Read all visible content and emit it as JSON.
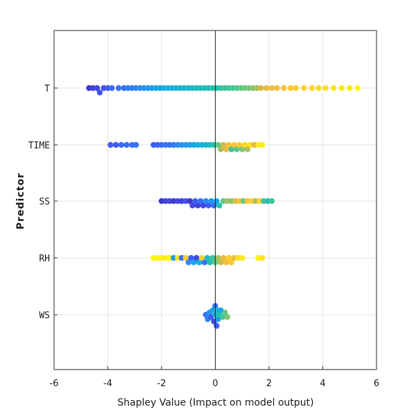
{
  "chart_data": {
    "type": "scatter",
    "subtype": "shap-swarm",
    "title": "",
    "xlabel": "Shapley Value (Impact on model output)",
    "ylabel": "Predictor",
    "xlim": [
      -6,
      6
    ],
    "xticks": [
      -6,
      -4,
      -2,
      0,
      2,
      4,
      6
    ],
    "grid": true,
    "colormap": [
      "#3e26a8",
      "#4352f4",
      "#2d88f3",
      "#13aee4",
      "#23c1ad",
      "#6cca7e",
      "#d2ba49",
      "#fec338",
      "#f9f90e"
    ],
    "predictors": [
      {
        "name": "T",
        "points": [
          {
            "x": -4.7,
            "c": 0.05
          },
          {
            "x": -4.55,
            "c": 0.08
          },
          {
            "x": -4.4,
            "c": 0.1
          },
          {
            "x": -4.3,
            "c": 0.12
          },
          {
            "x": -4.15,
            "c": 0.12
          },
          {
            "x": -4.0,
            "c": 0.15
          },
          {
            "x": -3.85,
            "c": 0.18
          },
          {
            "x": -3.6,
            "c": 0.2
          },
          {
            "x": -3.4,
            "c": 0.2
          },
          {
            "x": -3.25,
            "c": 0.22
          },
          {
            "x": -3.1,
            "c": 0.22
          },
          {
            "x": -2.95,
            "c": 0.25
          },
          {
            "x": -2.8,
            "c": 0.25
          },
          {
            "x": -2.65,
            "c": 0.3
          },
          {
            "x": -2.5,
            "c": 0.3
          },
          {
            "x": -2.35,
            "c": 0.32
          },
          {
            "x": -2.2,
            "c": 0.35
          },
          {
            "x": -2.05,
            "c": 0.35
          },
          {
            "x": -1.9,
            "c": 0.38
          },
          {
            "x": -1.75,
            "c": 0.38
          },
          {
            "x": -1.6,
            "c": 0.4
          },
          {
            "x": -1.45,
            "c": 0.4
          },
          {
            "x": -1.3,
            "c": 0.42
          },
          {
            "x": -1.15,
            "c": 0.42
          },
          {
            "x": -1.0,
            "c": 0.44
          },
          {
            "x": -0.85,
            "c": 0.44
          },
          {
            "x": -0.7,
            "c": 0.46
          },
          {
            "x": -0.55,
            "c": 0.46
          },
          {
            "x": -0.4,
            "c": 0.48
          },
          {
            "x": -0.25,
            "c": 0.48
          },
          {
            "x": -0.1,
            "c": 0.5
          },
          {
            "x": 0.05,
            "c": 0.5
          },
          {
            "x": 0.2,
            "c": 0.52
          },
          {
            "x": 0.35,
            "c": 0.54
          },
          {
            "x": 0.5,
            "c": 0.55
          },
          {
            "x": 0.65,
            "c": 0.56
          },
          {
            "x": 0.8,
            "c": 0.58
          },
          {
            "x": 0.95,
            "c": 0.6
          },
          {
            "x": 1.1,
            "c": 0.62
          },
          {
            "x": 1.25,
            "c": 0.64
          },
          {
            "x": 1.4,
            "c": 0.66
          },
          {
            "x": 1.55,
            "c": 0.7
          },
          {
            "x": 1.7,
            "c": 0.75
          },
          {
            "x": 1.9,
            "c": 0.8
          },
          {
            "x": 2.1,
            "c": 0.82
          },
          {
            "x": 2.3,
            "c": 0.85
          },
          {
            "x": 2.55,
            "c": 0.86
          },
          {
            "x": 2.8,
            "c": 0.88
          },
          {
            "x": 3.0,
            "c": 0.9
          },
          {
            "x": 3.3,
            "c": 0.9
          },
          {
            "x": 3.6,
            "c": 0.92
          },
          {
            "x": 3.85,
            "c": 0.92
          },
          {
            "x": 4.1,
            "c": 0.94
          },
          {
            "x": 4.4,
            "c": 0.95
          },
          {
            "x": 4.7,
            "c": 0.97
          },
          {
            "x": 5.0,
            "c": 0.98
          },
          {
            "x": 5.3,
            "c": 1.0
          }
        ]
      },
      {
        "name": "TIME",
        "points": [
          {
            "x": -3.9,
            "c": 0.15
          },
          {
            "x": -3.7,
            "c": 0.15
          },
          {
            "x": -3.5,
            "c": 0.18
          },
          {
            "x": -3.3,
            "c": 0.18
          },
          {
            "x": -3.1,
            "c": 0.2
          },
          {
            "x": -2.95,
            "c": 0.2
          },
          {
            "x": -2.3,
            "c": 0.15
          },
          {
            "x": -2.15,
            "c": 0.15
          },
          {
            "x": -2.0,
            "c": 0.18
          },
          {
            "x": -1.85,
            "c": 0.2
          },
          {
            "x": -1.7,
            "c": 0.2
          },
          {
            "x": -1.55,
            "c": 0.22
          },
          {
            "x": -1.4,
            "c": 0.25
          },
          {
            "x": -1.25,
            "c": 0.28
          },
          {
            "x": -1.1,
            "c": 0.3
          },
          {
            "x": -0.95,
            "c": 0.32
          },
          {
            "x": -0.8,
            "c": 0.35
          },
          {
            "x": -0.65,
            "c": 0.38
          },
          {
            "x": -0.5,
            "c": 0.4
          },
          {
            "x": -0.35,
            "c": 0.42
          },
          {
            "x": -0.2,
            "c": 0.45
          },
          {
            "x": -0.05,
            "c": 0.5
          },
          {
            "x": 0.1,
            "c": 0.6
          },
          {
            "x": 0.2,
            "c": 0.7
          },
          {
            "x": 0.3,
            "c": 0.75
          },
          {
            "x": 0.4,
            "c": 0.8
          },
          {
            "x": 0.5,
            "c": 0.85
          },
          {
            "x": 0.6,
            "c": 0.55
          },
          {
            "x": 0.7,
            "c": 0.88
          },
          {
            "x": 0.8,
            "c": 0.6
          },
          {
            "x": 0.9,
            "c": 0.9
          },
          {
            "x": 1.0,
            "c": 0.65
          },
          {
            "x": 1.1,
            "c": 0.92
          },
          {
            "x": 1.2,
            "c": 0.7
          },
          {
            "x": 1.3,
            "c": 0.94
          },
          {
            "x": 1.45,
            "c": 0.8
          },
          {
            "x": 1.6,
            "c": 0.96
          },
          {
            "x": 1.75,
            "c": 0.98
          }
        ]
      },
      {
        "name": "SS",
        "points": [
          {
            "x": -2.0,
            "c": 0.05
          },
          {
            "x": -1.85,
            "c": 0.08
          },
          {
            "x": -1.7,
            "c": 0.1
          },
          {
            "x": -1.55,
            "c": 0.05
          },
          {
            "x": -1.4,
            "c": 0.1
          },
          {
            "x": -1.25,
            "c": 0.08
          },
          {
            "x": -1.1,
            "c": 0.12
          },
          {
            "x": -0.95,
            "c": 0.05
          },
          {
            "x": -0.85,
            "c": 0.1
          },
          {
            "x": -0.75,
            "c": 0.15
          },
          {
            "x": -0.65,
            "c": 0.08
          },
          {
            "x": -0.55,
            "c": 0.2
          },
          {
            "x": -0.45,
            "c": 0.1
          },
          {
            "x": -0.35,
            "c": 0.25
          },
          {
            "x": -0.25,
            "c": 0.15
          },
          {
            "x": -0.15,
            "c": 0.3
          },
          {
            "x": -0.05,
            "c": 0.2
          },
          {
            "x": 0.05,
            "c": 0.35
          },
          {
            "x": 0.15,
            "c": 0.5
          },
          {
            "x": 0.3,
            "c": 0.6
          },
          {
            "x": 0.45,
            "c": 0.7
          },
          {
            "x": 0.6,
            "c": 0.65
          },
          {
            "x": 0.75,
            "c": 0.78
          },
          {
            "x": 0.9,
            "c": 0.85
          },
          {
            "x": 1.05,
            "c": 0.62
          },
          {
            "x": 1.2,
            "c": 0.88
          },
          {
            "x": 1.35,
            "c": 0.9
          },
          {
            "x": 1.5,
            "c": 0.7
          },
          {
            "x": 1.65,
            "c": 0.92
          },
          {
            "x": 1.8,
            "c": 0.55
          },
          {
            "x": 1.95,
            "c": 0.5
          },
          {
            "x": 2.1,
            "c": 0.55
          }
        ]
      },
      {
        "name": "RH",
        "points": [
          {
            "x": -2.3,
            "c": 1.0
          },
          {
            "x": -2.15,
            "c": 0.98
          },
          {
            "x": -2.0,
            "c": 0.98
          },
          {
            "x": -1.85,
            "c": 0.96
          },
          {
            "x": -1.7,
            "c": 1.0
          },
          {
            "x": -1.55,
            "c": 0.3
          },
          {
            "x": -1.4,
            "c": 0.95
          },
          {
            "x": -1.25,
            "c": 0.2
          },
          {
            "x": -1.1,
            "c": 0.9
          },
          {
            "x": -1.0,
            "c": 0.25
          },
          {
            "x": -0.9,
            "c": 0.15
          },
          {
            "x": -0.8,
            "c": 0.35
          },
          {
            "x": -0.7,
            "c": 0.1
          },
          {
            "x": -0.6,
            "c": 0.4
          },
          {
            "x": -0.5,
            "c": 0.92
          },
          {
            "x": -0.4,
            "c": 0.2
          },
          {
            "x": -0.3,
            "c": 0.45
          },
          {
            "x": -0.2,
            "c": 0.5
          },
          {
            "x": -0.1,
            "c": 0.55
          },
          {
            "x": 0.0,
            "c": 0.6
          },
          {
            "x": 0.1,
            "c": 0.7
          },
          {
            "x": 0.2,
            "c": 0.75
          },
          {
            "x": 0.3,
            "c": 0.8
          },
          {
            "x": 0.4,
            "c": 0.85
          },
          {
            "x": 0.5,
            "c": 0.9
          },
          {
            "x": 0.6,
            "c": 0.88
          },
          {
            "x": 0.7,
            "c": 0.82
          },
          {
            "x": 0.85,
            "c": 0.94
          },
          {
            "x": 1.0,
            "c": 0.96
          },
          {
            "x": 1.6,
            "c": 0.98
          },
          {
            "x": 1.75,
            "c": 0.95
          }
        ]
      },
      {
        "name": "WS",
        "points": [
          {
            "x": -0.35,
            "c": 0.2
          },
          {
            "x": -0.28,
            "c": 0.25
          },
          {
            "x": -0.22,
            "c": 0.3
          },
          {
            "x": -0.16,
            "c": 0.15
          },
          {
            "x": -0.1,
            "c": 0.35
          },
          {
            "x": -0.05,
            "c": 0.1
          },
          {
            "x": 0.0,
            "c": 0.4
          },
          {
            "x": 0.0,
            "c": 0.2
          },
          {
            "x": 0.05,
            "c": 0.45
          },
          {
            "x": 0.05,
            "c": 0.15
          },
          {
            "x": 0.1,
            "c": 0.3
          },
          {
            "x": 0.15,
            "c": 0.5
          },
          {
            "x": 0.2,
            "c": 0.35
          },
          {
            "x": 0.28,
            "c": 0.55
          },
          {
            "x": 0.36,
            "c": 0.6
          },
          {
            "x": 0.45,
            "c": 0.65
          }
        ]
      }
    ]
  }
}
